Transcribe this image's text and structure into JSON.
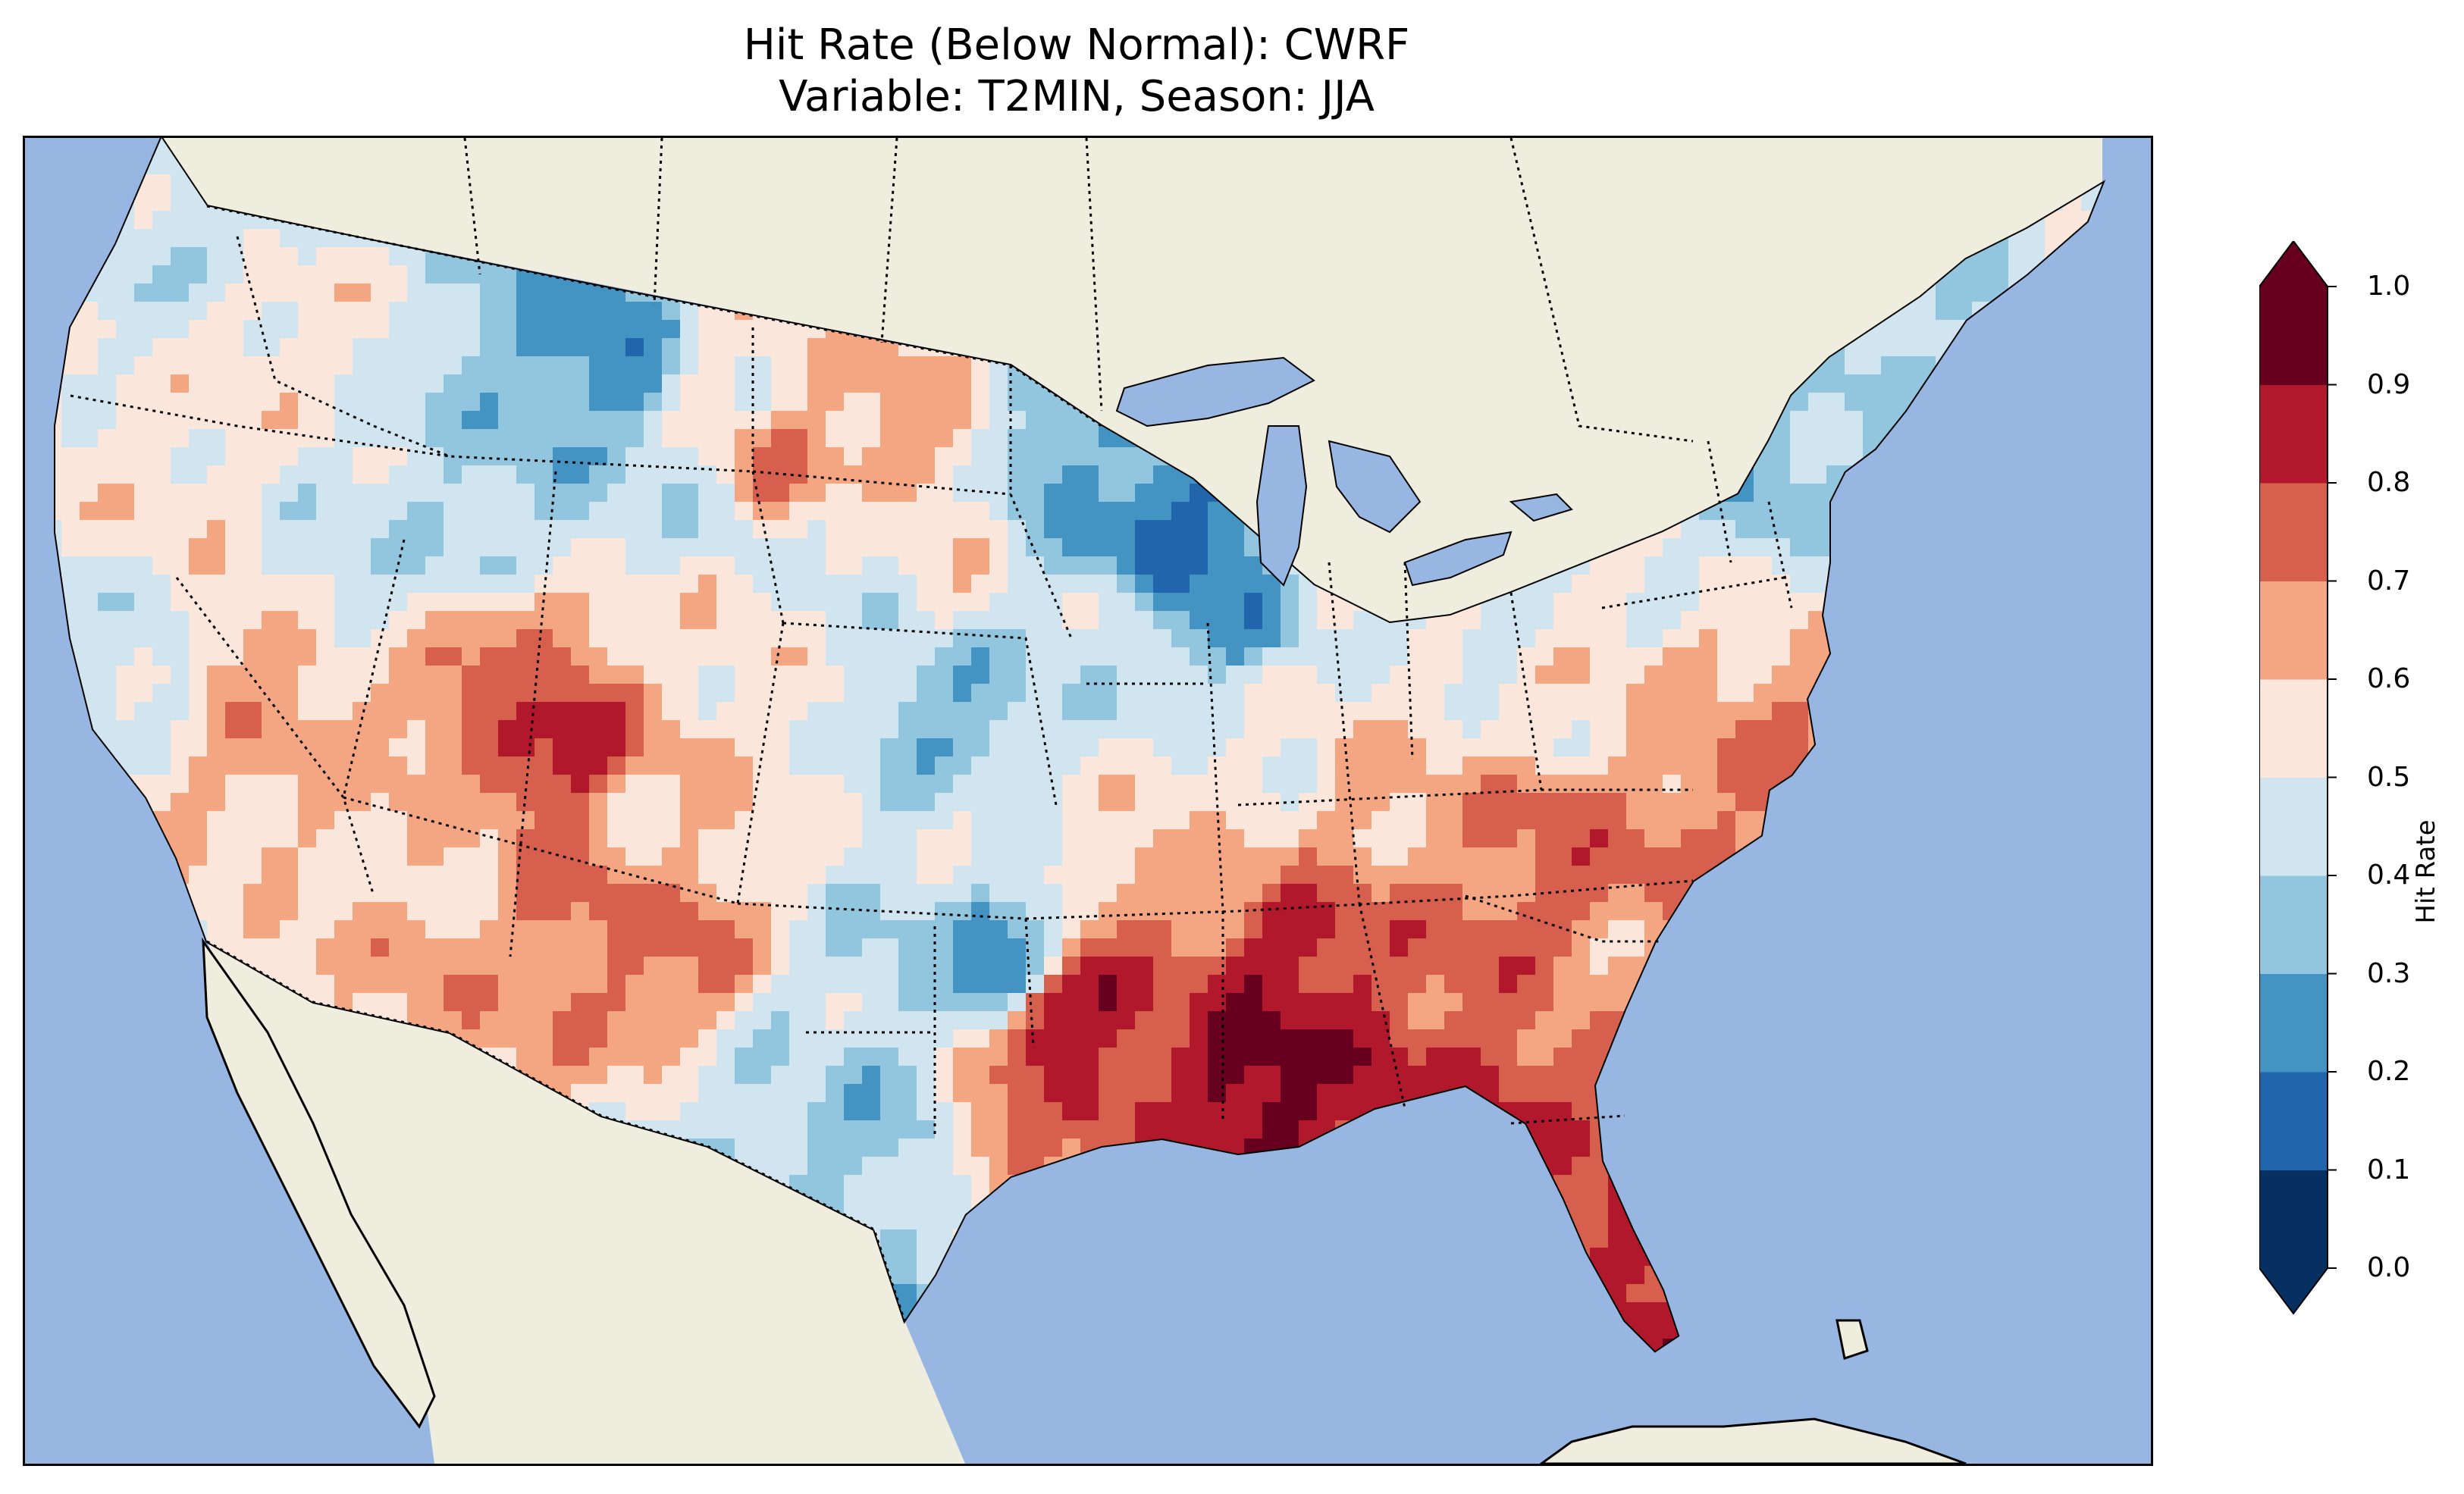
{
  "map": {
    "title_line1": "Hit Rate (Below Normal): CWRF",
    "title_line2": "Variable: T2MIN, Season: JJA",
    "region": "Contiguous United States",
    "projection": "Lambert Conformal",
    "colors": {
      "ocean": "#97b6e2",
      "land": "#efedde",
      "coastline": "#000000",
      "borders": "#000000"
    }
  },
  "colorbar": {
    "label": "Hit Rate",
    "ticks": [
      "0.0",
      "0.1",
      "0.2",
      "0.3",
      "0.4",
      "0.5",
      "0.6",
      "0.7",
      "0.8",
      "0.9",
      "1.0"
    ],
    "extend": "both",
    "colormap": "RdBu_r",
    "levels": [
      0.0,
      0.1,
      0.2,
      0.3,
      0.4,
      0.5,
      0.6,
      0.7,
      0.8,
      0.9,
      1.0
    ],
    "colors": [
      "#053061",
      "#2166ac",
      "#4393c3",
      "#92c5de",
      "#d1e5f0",
      "#fbe6dc",
      "#f4a582",
      "#d6604d",
      "#b2182b",
      "#67001f"
    ]
  }
}
